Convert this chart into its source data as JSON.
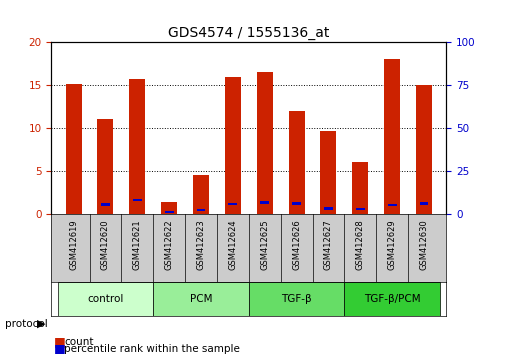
{
  "title": "GDS4574 / 1555136_at",
  "samples": [
    "GSM412619",
    "GSM412620",
    "GSM412621",
    "GSM412622",
    "GSM412623",
    "GSM412624",
    "GSM412625",
    "GSM412626",
    "GSM412627",
    "GSM412628",
    "GSM412629",
    "GSM412630"
  ],
  "count_values": [
    15.2,
    11.1,
    15.7,
    1.3,
    4.5,
    16.0,
    16.6,
    12.0,
    9.7,
    6.0,
    18.1,
    15.0
  ],
  "percentile_values": [
    0.0,
    1.05,
    1.6,
    0.2,
    0.4,
    1.1,
    1.3,
    1.2,
    0.6,
    0.55,
    1.0,
    1.2
  ],
  "percentile_marker_pos": [
    0.0,
    1.05,
    1.6,
    0.2,
    0.4,
    1.1,
    1.3,
    1.2,
    0.6,
    0.55,
    1.0,
    1.2
  ],
  "groups": [
    {
      "label": "control",
      "start": 0,
      "end": 3,
      "color": "#ccffcc"
    },
    {
      "label": "PCM",
      "start": 3,
      "end": 6,
      "color": "#99ee99"
    },
    {
      "label": "TGF-β",
      "start": 6,
      "end": 9,
      "color": "#66dd66"
    },
    {
      "label": "TGF-β/PCM",
      "start": 9,
      "end": 12,
      "color": "#33cc33"
    }
  ],
  "ylim_left": [
    0,
    20
  ],
  "ylim_right": [
    0,
    100
  ],
  "yticks_left": [
    0,
    5,
    10,
    15,
    20
  ],
  "yticks_right": [
    0,
    25,
    50,
    75,
    100
  ],
  "bar_color": "#cc2200",
  "marker_color": "#0000cc",
  "bg_color": "#ffffff",
  "plot_bg": "#ffffff",
  "grid_color": "#000000",
  "tick_label_color_left": "#cc2200",
  "tick_label_color_right": "#0000cc"
}
